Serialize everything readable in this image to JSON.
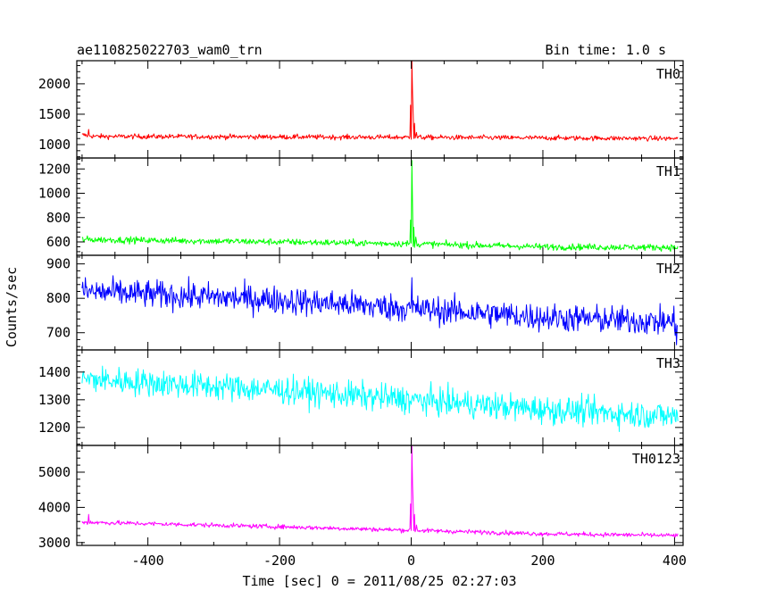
{
  "chart_data": {
    "type": "line",
    "title": "ae110825022703_wam0_trn",
    "subtitle": "Bin time: 1.0 s",
    "xlabel": "Time [sec] 0 = 2011/08/25 02:27:03",
    "ylabel": "Counts/sec",
    "xlim": [
      -508,
      413
    ],
    "x_ticks": [
      -400,
      -200,
      0,
      200,
      400
    ],
    "x_data_range": [
      -500,
      405
    ],
    "bin_time": 1.0,
    "grid": false,
    "panels": [
      {
        "name": "TH0",
        "color": "#ff0000",
        "ylim": [
          780,
          2380
        ],
        "y_ticks": [
          1000,
          1500,
          2000
        ],
        "profile": {
          "baseline": [
            [
              -500,
              1160
            ],
            [
              -480,
              1135
            ],
            [
              -300,
              1130
            ],
            [
              0,
              1120
            ],
            [
              100,
              1115
            ],
            [
              405,
              1100
            ]
          ],
          "noise": 45,
          "features": [
            {
              "x": -490,
              "peak": 1250
            },
            {
              "x": -1,
              "peak": 1650
            },
            {
              "x": 1,
              "peak": 2380
            },
            {
              "x": 2,
              "peak": 1850
            },
            {
              "x": 3,
              "peak": 1500
            },
            {
              "x": 5,
              "peak": 1350
            },
            {
              "x": 8,
              "peak": 1200
            }
          ]
        }
      },
      {
        "name": "TH1",
        "color": "#00ff00",
        "ylim": [
          490,
          1290
        ],
        "y_ticks": [
          600,
          800,
          1000,
          1200
        ],
        "profile": {
          "baseline": [
            [
              -500,
              620
            ],
            [
              -200,
              600
            ],
            [
              0,
              585
            ],
            [
              200,
              560
            ],
            [
              405,
              555
            ]
          ],
          "noise": 30,
          "features": [
            {
              "x": -1,
              "peak": 780
            },
            {
              "x": 1,
              "peak": 1270
            },
            {
              "x": 2,
              "peak": 900
            },
            {
              "x": 4,
              "peak": 720
            },
            {
              "x": 7,
              "peak": 640
            }
          ]
        }
      },
      {
        "name": "TH2",
        "color": "#0000ff",
        "ylim": [
          650,
          925
        ],
        "y_ticks": [
          700,
          800,
          900
        ],
        "profile": {
          "baseline": [
            [
              -500,
              820
            ],
            [
              -200,
              795
            ],
            [
              0,
              770
            ],
            [
              200,
              745
            ],
            [
              405,
              730
            ]
          ],
          "noise": 45,
          "features": [
            {
              "x": 1,
              "peak": 860
            },
            {
              "x": 403,
              "peak": 665
            }
          ]
        }
      },
      {
        "name": "TH3",
        "color": "#00ffff",
        "ylim": [
          1135,
          1480
        ],
        "y_ticks": [
          1200,
          1300,
          1400
        ],
        "profile": {
          "baseline": [
            [
              -500,
              1375
            ],
            [
              -200,
              1335
            ],
            [
              0,
              1300
            ],
            [
              200,
              1265
            ],
            [
              405,
              1240
            ]
          ],
          "noise": 55,
          "features": []
        }
      },
      {
        "name": "TH0123",
        "color": "#ff00ff",
        "ylim": [
          2920,
          5760
        ],
        "y_ticks": [
          3000,
          4000,
          5000
        ],
        "profile": {
          "baseline": [
            [
              -500,
              3580
            ],
            [
              -200,
              3450
            ],
            [
              0,
              3350
            ],
            [
              200,
              3250
            ],
            [
              405,
              3200
            ]
          ],
          "noise": 70,
          "features": [
            {
              "x": -490,
              "peak": 3800
            },
            {
              "x": -1,
              "peak": 4100
            },
            {
              "x": 1,
              "peak": 5760
            },
            {
              "x": 2,
              "peak": 4650
            },
            {
              "x": 3,
              "peak": 4100
            },
            {
              "x": 5,
              "peak": 3800
            },
            {
              "x": 8,
              "peak": 3500
            }
          ]
        }
      }
    ]
  }
}
